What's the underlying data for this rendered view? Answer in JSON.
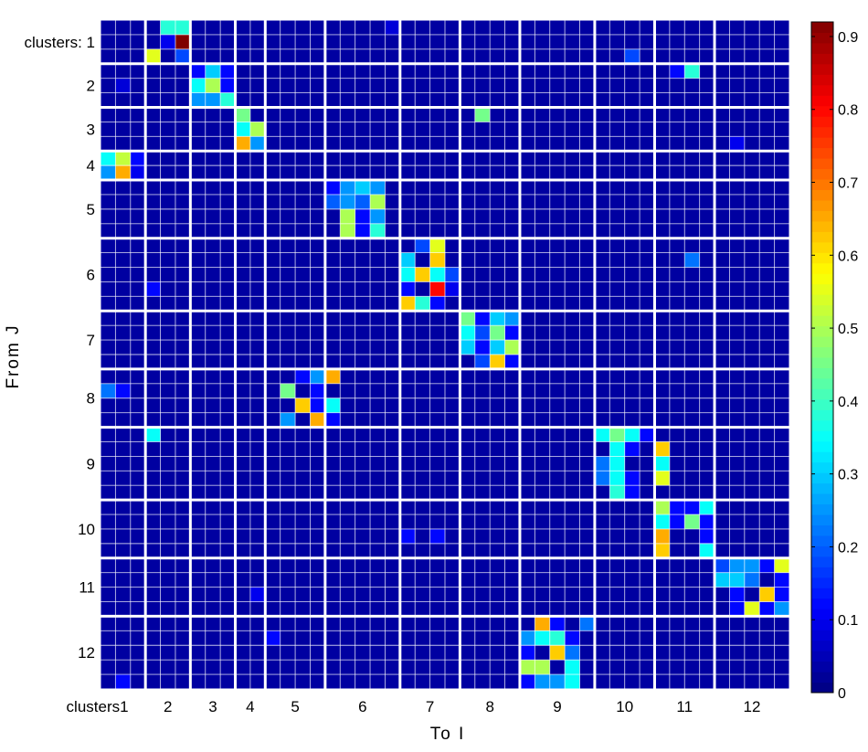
{
  "chart_data": {
    "type": "heatmap",
    "xlabel": "To  I",
    "ylabel": "From  J",
    "row_labels": [
      "clusters: 1",
      "2",
      "3",
      "4",
      "5",
      "6",
      "7",
      "8",
      "9",
      "10",
      "11",
      "12"
    ],
    "col_labels": [
      "clusters1",
      "2",
      "3",
      "4",
      "5",
      "6",
      "7",
      "8",
      "9",
      "10",
      "11",
      "12"
    ],
    "cluster_sizes": [
      3,
      3,
      3,
      2,
      4,
      5,
      4,
      4,
      5,
      4,
      4,
      5
    ],
    "colorbar": {
      "colormap": "jet",
      "range": [
        0,
        0.92
      ],
      "ticks": [
        0,
        0.1,
        0.2,
        0.3,
        0.4,
        0.5,
        0.6,
        0.7,
        0.8,
        0.9
      ],
      "tick_labels": [
        "0",
        "0.1",
        "0.2",
        "0.3",
        "0.4",
        "0.5",
        "0.6",
        "0.7",
        "0.8",
        "0.9"
      ]
    },
    "default_value": 0.03,
    "cells": [
      [
        0,
        4,
        0.38
      ],
      [
        0,
        5,
        0.38
      ],
      [
        1,
        4,
        0.1
      ],
      [
        1,
        5,
        0.92
      ],
      [
        2,
        3,
        0.55
      ],
      [
        2,
        5,
        0.18
      ],
      [
        0,
        19,
        0.08
      ],
      [
        2,
        35,
        0.18
      ],
      [
        3,
        6,
        0.12
      ],
      [
        3,
        7,
        0.3
      ],
      [
        3,
        8,
        0.12
      ],
      [
        4,
        6,
        0.35
      ],
      [
        4,
        7,
        0.5
      ],
      [
        4,
        8,
        0.12
      ],
      [
        5,
        6,
        0.25
      ],
      [
        5,
        7,
        0.25
      ],
      [
        5,
        8,
        0.38
      ],
      [
        3,
        38,
        0.12
      ],
      [
        3,
        39,
        0.38
      ],
      [
        4,
        1,
        0.08
      ],
      [
        6,
        9,
        0.45
      ],
      [
        7,
        9,
        0.35
      ],
      [
        7,
        10,
        0.5
      ],
      [
        8,
        9,
        0.65
      ],
      [
        8,
        10,
        0.25
      ],
      [
        6,
        25,
        0.45
      ],
      [
        8,
        42,
        0.1
      ],
      [
        9,
        0,
        0.35
      ],
      [
        9,
        1,
        0.52
      ],
      [
        9,
        2,
        0.12
      ],
      [
        10,
        0,
        0.25
      ],
      [
        10,
        1,
        0.65
      ],
      [
        10,
        2,
        0.1
      ],
      [
        11,
        15,
        0.12
      ],
      [
        11,
        16,
        0.25
      ],
      [
        11,
        17,
        0.3
      ],
      [
        11,
        18,
        0.25
      ],
      [
        12,
        15,
        0.2
      ],
      [
        12,
        16,
        0.25
      ],
      [
        12,
        17,
        0.2
      ],
      [
        12,
        18,
        0.5
      ],
      [
        13,
        16,
        0.5
      ],
      [
        13,
        17,
        0.12
      ],
      [
        13,
        18,
        0.25
      ],
      [
        14,
        16,
        0.5
      ],
      [
        14,
        17,
        0.12
      ],
      [
        14,
        18,
        0.38
      ],
      [
        15,
        21,
        0.18
      ],
      [
        15,
        22,
        0.55
      ],
      [
        16,
        20,
        0.3
      ],
      [
        16,
        22,
        0.62
      ],
      [
        17,
        20,
        0.35
      ],
      [
        17,
        21,
        0.62
      ],
      [
        17,
        22,
        0.35
      ],
      [
        17,
        23,
        0.18
      ],
      [
        18,
        20,
        0.12
      ],
      [
        18,
        22,
        0.8
      ],
      [
        18,
        23,
        0.1
      ],
      [
        19,
        20,
        0.62
      ],
      [
        19,
        21,
        0.38
      ],
      [
        19,
        22,
        0.12
      ],
      [
        16,
        39,
        0.22
      ],
      [
        18,
        3,
        0.12
      ],
      [
        20,
        24,
        0.45
      ],
      [
        20,
        25,
        0.12
      ],
      [
        20,
        26,
        0.3
      ],
      [
        20,
        27,
        0.25
      ],
      [
        21,
        24,
        0.35
      ],
      [
        21,
        25,
        0.18
      ],
      [
        21,
        26,
        0.45
      ],
      [
        21,
        27,
        0.12
      ],
      [
        22,
        24,
        0.3
      ],
      [
        22,
        25,
        0.12
      ],
      [
        22,
        26,
        0.3
      ],
      [
        22,
        27,
        0.5
      ],
      [
        23,
        25,
        0.18
      ],
      [
        23,
        26,
        0.62
      ],
      [
        23,
        27,
        0.12
      ],
      [
        24,
        13,
        0.12
      ],
      [
        24,
        14,
        0.25
      ],
      [
        24,
        15,
        0.65
      ],
      [
        25,
        0,
        0.22
      ],
      [
        25,
        1,
        0.12
      ],
      [
        25,
        12,
        0.45
      ],
      [
        25,
        14,
        0.12
      ],
      [
        26,
        13,
        0.62
      ],
      [
        26,
        14,
        0.12
      ],
      [
        26,
        15,
        0.35
      ],
      [
        27,
        12,
        0.25
      ],
      [
        27,
        14,
        0.65
      ],
      [
        27,
        15,
        0.12
      ],
      [
        28,
        3,
        0.35
      ],
      [
        28,
        33,
        0.35
      ],
      [
        28,
        34,
        0.45
      ],
      [
        28,
        35,
        0.35
      ],
      [
        28,
        36,
        0.12
      ],
      [
        29,
        34,
        0.35
      ],
      [
        29,
        35,
        0.12
      ],
      [
        29,
        37,
        0.62
      ],
      [
        30,
        33,
        0.22
      ],
      [
        30,
        34,
        0.35
      ],
      [
        30,
        37,
        0.35
      ],
      [
        31,
        33,
        0.22
      ],
      [
        31,
        34,
        0.35
      ],
      [
        31,
        35,
        0.12
      ],
      [
        31,
        37,
        0.55
      ],
      [
        32,
        34,
        0.38
      ],
      [
        32,
        35,
        0.12
      ],
      [
        33,
        37,
        0.5
      ],
      [
        33,
        38,
        0.12
      ],
      [
        33,
        39,
        0.12
      ],
      [
        33,
        40,
        0.35
      ],
      [
        34,
        37,
        0.35
      ],
      [
        34,
        38,
        0.12
      ],
      [
        34,
        39,
        0.45
      ],
      [
        34,
        40,
        0.12
      ],
      [
        35,
        37,
        0.65
      ],
      [
        35,
        40,
        0.12
      ],
      [
        36,
        37,
        0.62
      ],
      [
        36,
        40,
        0.35
      ],
      [
        35,
        20,
        0.12
      ],
      [
        35,
        22,
        0.12
      ],
      [
        37,
        41,
        0.18
      ],
      [
        37,
        42,
        0.25
      ],
      [
        37,
        43,
        0.25
      ],
      [
        37,
        44,
        0.12
      ],
      [
        37,
        45,
        0.55
      ],
      [
        38,
        41,
        0.3
      ],
      [
        38,
        42,
        0.3
      ],
      [
        38,
        43,
        0.22
      ],
      [
        38,
        45,
        0.12
      ],
      [
        38,
        46,
        0.18
      ],
      [
        39,
        42,
        0.12
      ],
      [
        39,
        44,
        0.62
      ],
      [
        39,
        45,
        0.12
      ],
      [
        39,
        46,
        0.25
      ],
      [
        40,
        42,
        0.12
      ],
      [
        40,
        43,
        0.55
      ],
      [
        40,
        44,
        0.12
      ],
      [
        40,
        45,
        0.25
      ],
      [
        40,
        46,
        0.12
      ],
      [
        39,
        10,
        0.1
      ],
      [
        41,
        29,
        0.65
      ],
      [
        41,
        30,
        0.12
      ],
      [
        41,
        32,
        0.22
      ],
      [
        42,
        28,
        0.25
      ],
      [
        42,
        29,
        0.35
      ],
      [
        42,
        30,
        0.38
      ],
      [
        42,
        31,
        0.12
      ],
      [
        43,
        28,
        0.12
      ],
      [
        43,
        30,
        0.62
      ],
      [
        43,
        31,
        0.22
      ],
      [
        44,
        28,
        0.5
      ],
      [
        44,
        29,
        0.5
      ],
      [
        44,
        31,
        0.35
      ],
      [
        45,
        28,
        0.12
      ],
      [
        45,
        29,
        0.25
      ],
      [
        45,
        30,
        0.25
      ],
      [
        45,
        31,
        0.35
      ],
      [
        42,
        11,
        0.12
      ],
      [
        45,
        1,
        0.12
      ]
    ]
  }
}
